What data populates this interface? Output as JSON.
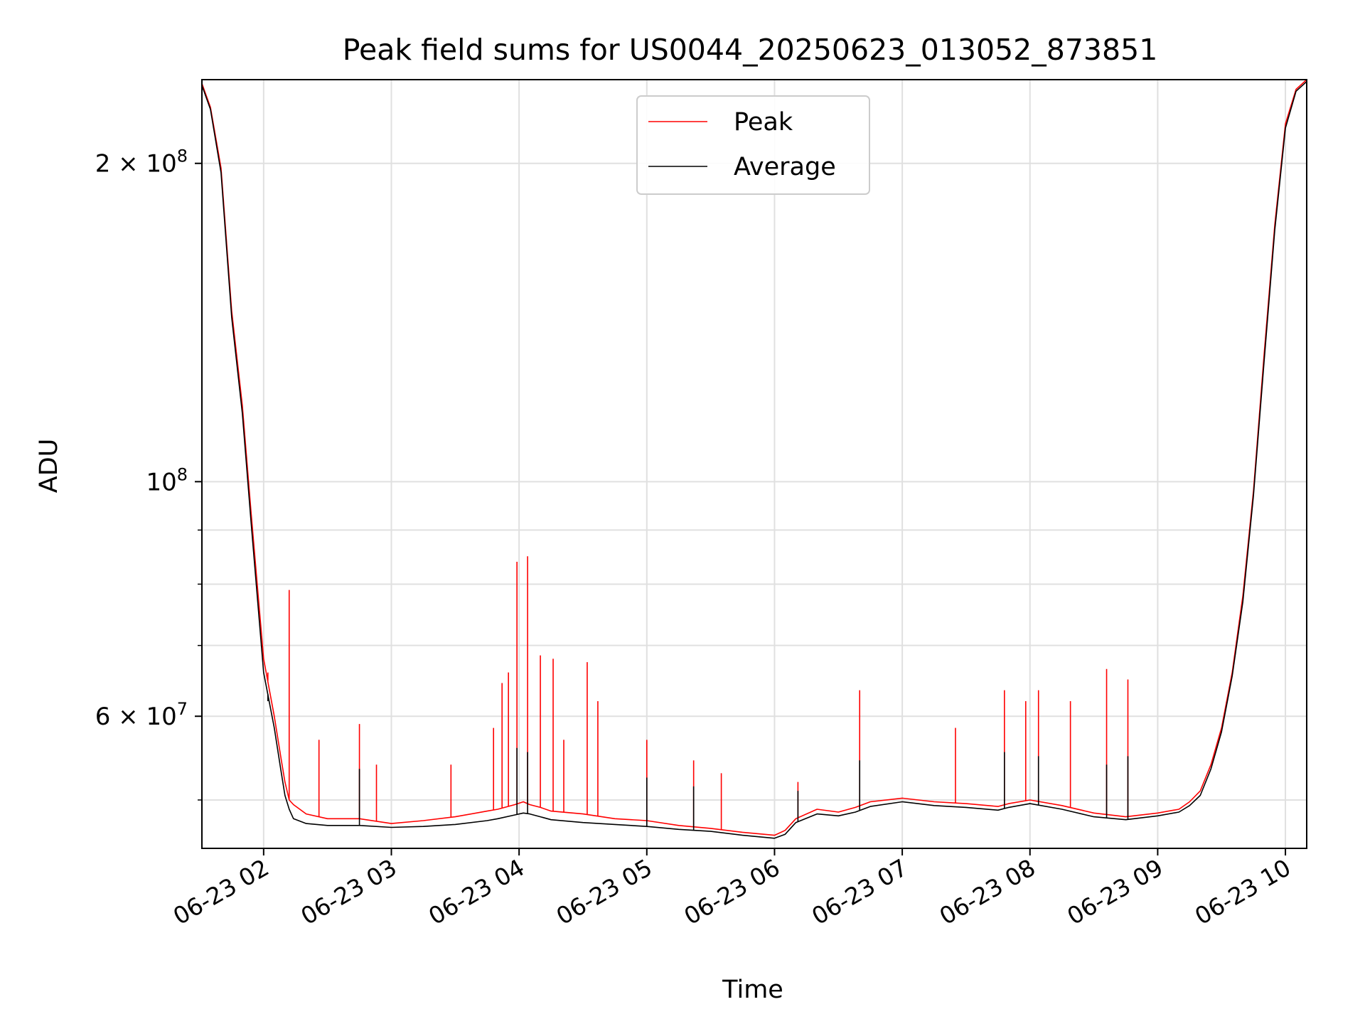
{
  "chart_data": {
    "type": "line",
    "title": "Peak field sums for US0044_20250623_013052_873851",
    "xlabel": "Time",
    "ylabel": "ADU",
    "yscale": "log",
    "ylim": [
      45000000,
      240000000
    ],
    "xlim": [
      "06-23 01:31",
      "06-23 10:10"
    ],
    "grid": true,
    "legend_position": "top-center",
    "x_ticks": [
      "06-23 02",
      "06-23 03",
      "06-23 04",
      "06-23 05",
      "06-23 06",
      "06-23 07",
      "06-23 08",
      "06-23 09",
      "06-23 10"
    ],
    "y_major_ticks": [
      {
        "value": 60000000,
        "mantissa": "6",
        "exponent": "7"
      },
      {
        "value": 100000000,
        "mantissa": "",
        "exponent": "8"
      },
      {
        "value": 200000000,
        "mantissa": "2",
        "exponent": "8"
      }
    ],
    "y_minor_ticks": [
      50000000,
      70000000,
      80000000,
      90000000
    ],
    "colors": {
      "Peak": "#ff0000",
      "Average": "#000000",
      "grid": "#e0e0e0"
    },
    "series": [
      {
        "name": "Peak",
        "x": [
          "06-23 01:31",
          "06-23 01:35",
          "06-23 01:40",
          "06-23 01:45",
          "06-23 01:50",
          "06-23 01:54",
          "06-23 01:57",
          "06-23 02:00",
          "06-23 02:05",
          "06-23 02:08",
          "06-23 02:10",
          "06-23 02:12",
          "06-23 02:14",
          "06-23 02:20",
          "06-23 02:30",
          "06-23 02:45",
          "06-23 03:00",
          "06-23 03:15",
          "06-23 03:30",
          "06-23 03:45",
          "06-23 03:50",
          "06-23 03:58",
          "06-23 04:02",
          "06-23 04:05",
          "06-23 04:10",
          "06-23 04:15",
          "06-23 04:30",
          "06-23 04:45",
          "06-23 05:00",
          "06-23 05:15",
          "06-23 05:30",
          "06-23 05:45",
          "06-23 06:00",
          "06-23 06:05",
          "06-23 06:10",
          "06-23 06:20",
          "06-23 06:30",
          "06-23 06:38",
          "06-23 06:45",
          "06-23 07:00",
          "06-23 07:15",
          "06-23 07:30",
          "06-23 07:45",
          "06-23 07:50",
          "06-23 08:00",
          "06-23 08:15",
          "06-23 08:30",
          "06-23 08:45",
          "06-23 09:00",
          "06-23 09:10",
          "06-23 09:15",
          "06-23 09:20",
          "06-23 09:25",
          "06-23 09:30",
          "06-23 09:35",
          "06-23 09:40",
          "06-23 09:45",
          "06-23 09:50",
          "06-23 09:55",
          "06-23 10:00",
          "06-23 10:05",
          "06-23 10:10"
        ],
        "y": [
          238000000,
          226000000,
          198000000,
          145000000,
          118000000,
          94000000,
          80000000,
          68000000,
          60000000,
          55000000,
          52000000,
          50000000,
          49500000,
          48500000,
          48000000,
          48000000,
          47500000,
          47800000,
          48200000,
          48800000,
          49000000,
          49500000,
          49800000,
          49500000,
          49200000,
          48800000,
          48500000,
          48000000,
          47800000,
          47300000,
          47000000,
          46600000,
          46300000,
          46800000,
          48000000,
          49000000,
          48700000,
          49200000,
          49800000,
          50200000,
          49800000,
          49600000,
          49300000,
          49600000,
          50000000,
          49400000,
          48600000,
          48200000,
          48600000,
          49000000,
          49800000,
          51000000,
          54000000,
          58500000,
          66000000,
          78000000,
          98000000,
          132000000,
          175000000,
          218000000,
          235000000,
          240000000
        ],
        "spikes": [
          {
            "x": "06-23 02:12",
            "y": 79000000
          },
          {
            "x": "06-23 02:02",
            "y": 66000000
          },
          {
            "x": "06-23 02:26",
            "y": 57000000
          },
          {
            "x": "06-23 02:45",
            "y": 59000000
          },
          {
            "x": "06-23 02:53",
            "y": 54000000
          },
          {
            "x": "06-23 03:28",
            "y": 54000000
          },
          {
            "x": "06-23 03:48",
            "y": 58500000
          },
          {
            "x": "06-23 03:52",
            "y": 64500000
          },
          {
            "x": "06-23 03:55",
            "y": 66000000
          },
          {
            "x": "06-23 03:59",
            "y": 84000000
          },
          {
            "x": "06-23 04:04",
            "y": 85000000
          },
          {
            "x": "06-23 04:10",
            "y": 68500000
          },
          {
            "x": "06-23 04:16",
            "y": 68000000
          },
          {
            "x": "06-23 04:21",
            "y": 57000000
          },
          {
            "x": "06-23 04:32",
            "y": 67500000
          },
          {
            "x": "06-23 04:37",
            "y": 62000000
          },
          {
            "x": "06-23 05:00",
            "y": 57000000
          },
          {
            "x": "06-23 05:22",
            "y": 54500000
          },
          {
            "x": "06-23 05:35",
            "y": 53000000
          },
          {
            "x": "06-23 06:11",
            "y": 52000000
          },
          {
            "x": "06-23 06:40",
            "y": 63500000
          },
          {
            "x": "06-23 07:25",
            "y": 58500000
          },
          {
            "x": "06-23 07:48",
            "y": 63500000
          },
          {
            "x": "06-23 07:58",
            "y": 62000000
          },
          {
            "x": "06-23 08:04",
            "y": 63500000
          },
          {
            "x": "06-23 08:19",
            "y": 62000000
          },
          {
            "x": "06-23 08:36",
            "y": 66500000
          },
          {
            "x": "06-23 08:46",
            "y": 65000000
          }
        ]
      },
      {
        "name": "Average",
        "x": [
          "06-23 01:31",
          "06-23 01:35",
          "06-23 01:40",
          "06-23 01:45",
          "06-23 01:50",
          "06-23 01:54",
          "06-23 01:57",
          "06-23 02:00",
          "06-23 02:05",
          "06-23 02:08",
          "06-23 02:10",
          "06-23 02:12",
          "06-23 02:14",
          "06-23 02:20",
          "06-23 02:30",
          "06-23 02:45",
          "06-23 03:00",
          "06-23 03:15",
          "06-23 03:30",
          "06-23 03:45",
          "06-23 03:50",
          "06-23 03:58",
          "06-23 04:02",
          "06-23 04:05",
          "06-23 04:10",
          "06-23 04:15",
          "06-23 04:30",
          "06-23 04:45",
          "06-23 05:00",
          "06-23 05:15",
          "06-23 05:30",
          "06-23 05:45",
          "06-23 06:00",
          "06-23 06:05",
          "06-23 06:10",
          "06-23 06:20",
          "06-23 06:30",
          "06-23 06:38",
          "06-23 06:45",
          "06-23 07:00",
          "06-23 07:15",
          "06-23 07:30",
          "06-23 07:45",
          "06-23 07:50",
          "06-23 08:00",
          "06-23 08:15",
          "06-23 08:30",
          "06-23 08:45",
          "06-23 09:00",
          "06-23 09:10",
          "06-23 09:15",
          "06-23 09:20",
          "06-23 09:25",
          "06-23 09:30",
          "06-23 09:35",
          "06-23 09:40",
          "06-23 09:45",
          "06-23 09:50",
          "06-23 09:55",
          "06-23 10:00",
          "06-23 10:05",
          "06-23 10:10"
        ],
        "y": [
          237000000,
          225000000,
          196000000,
          143000000,
          116000000,
          92000000,
          78000000,
          66000000,
          58500000,
          53500000,
          50500000,
          49000000,
          48000000,
          47500000,
          47300000,
          47300000,
          47100000,
          47200000,
          47400000,
          47800000,
          48000000,
          48400000,
          48600000,
          48500000,
          48200000,
          47900000,
          47600000,
          47400000,
          47200000,
          46900000,
          46700000,
          46300000,
          46000000,
          46400000,
          47600000,
          48500000,
          48300000,
          48700000,
          49300000,
          49800000,
          49400000,
          49200000,
          48900000,
          49200000,
          49600000,
          49000000,
          48200000,
          47900000,
          48300000,
          48700000,
          49400000,
          50500000,
          53500000,
          58000000,
          65500000,
          77000000,
          97000000,
          130000000,
          173000000,
          216000000,
          234000000,
          239000000
        ],
        "spikes": [
          {
            "x": "06-23 02:02",
            "y": 62000000
          },
          {
            "x": "06-23 02:45",
            "y": 53500000
          },
          {
            "x": "06-23 03:59",
            "y": 56000000
          },
          {
            "x": "06-23 04:04",
            "y": 55500000
          },
          {
            "x": "06-23 05:00",
            "y": 52500000
          },
          {
            "x": "06-23 05:22",
            "y": 51500000
          },
          {
            "x": "06-23 06:11",
            "y": 51000000
          },
          {
            "x": "06-23 06:40",
            "y": 54500000
          },
          {
            "x": "06-23 07:48",
            "y": 55500000
          },
          {
            "x": "06-23 08:04",
            "y": 55000000
          },
          {
            "x": "06-23 08:36",
            "y": 54000000
          },
          {
            "x": "06-23 08:46",
            "y": 55000000
          }
        ]
      }
    ]
  }
}
